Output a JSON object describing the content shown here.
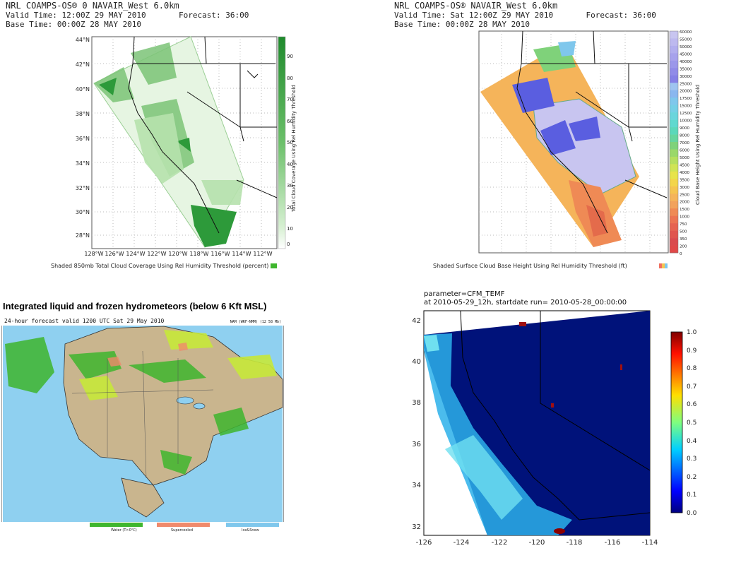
{
  "panel_tl": {
    "header": [
      "NRL COAMPS-OS® 0 NAVAIR_West 6.0km",
      "Valid Time: 12:00Z 29 MAY 2010       Forecast: 36:00",
      "Base Time: 00:00Z 28 MAY 2010"
    ],
    "lat_labels": [
      "44°N",
      "42°N",
      "40°N",
      "38°N",
      "36°N",
      "34°N",
      "32°N",
      "30°N",
      "28°N"
    ],
    "lon_labels": [
      "128°W",
      "126°W",
      "124°W",
      "122°W",
      "120°W",
      "118°W",
      "116°W",
      "114°W",
      "112°W"
    ],
    "colorbar_ticks": [
      "90",
      "80",
      "70",
      "60",
      "50",
      "40",
      "30",
      "20",
      "10",
      "0"
    ],
    "colorbar_label": "Total Cloud Coverage Using Rel Humidity Threshold",
    "caption": "Shaded 850mb Total Cloud Coverage Using Rel Humidity Threshold (percent)"
  },
  "panel_tr": {
    "header": [
      "NRL COAMPS-OS® NAVAIR_West 6.0km",
      "Valid Time: Sat 12:00Z 29 MAY 2010       Forecast: 36:00",
      "Base Time: 00:00Z 28 MAY 2010"
    ],
    "colorbar_ticks": [
      "60000",
      "55000",
      "50000",
      "45000",
      "40000",
      "35000",
      "30000",
      "25000",
      "20000",
      "17500",
      "15000",
      "12500",
      "10000",
      "9000",
      "8000",
      "7000",
      "6000",
      "5000",
      "4500",
      "4000",
      "3500",
      "3000",
      "2500",
      "2000",
      "1500",
      "1000",
      "750",
      "500",
      "350",
      "200",
      "0"
    ],
    "colorbar_label": "Cloud Base Height Using Rel Humidity Threshold",
    "caption": "Shaded Surface Cloud Base Height Using Rel Humidity Threshold (ft)"
  },
  "panel_bl": {
    "title": "Integrated liquid and frozen hydrometeors (below 6 Kft MSL)",
    "subheader": "24-hour forecast valid 1200 UTC Sat 29 May 2010",
    "subheader_right": "NAM (WRF-NMM) (12 58 Mb)",
    "legend": [
      {
        "label": "Water (T>0°C)",
        "color": "#3fb62e"
      },
      {
        "label": "Supercooled",
        "color": "#f08a6c"
      },
      {
        "label": "Ice&Snow",
        "color": "#7fc7ec"
      }
    ]
  },
  "panel_br": {
    "param_line": "parameter=CFM_TEMF",
    "time_line": "at 2010-05-29_12h, startdate run= 2010-05-28_00:00:00",
    "y_ticks": [
      "42",
      "40",
      "38",
      "36",
      "34",
      "32"
    ],
    "x_ticks": [
      "-126",
      "-124",
      "-122",
      "-120",
      "-118",
      "-116",
      "-114"
    ],
    "colorbar_ticks": [
      "1.0",
      "0.9",
      "0.8",
      "0.7",
      "0.6",
      "0.5",
      "0.4",
      "0.3",
      "0.2",
      "0.1",
      "0.0"
    ]
  },
  "colors": {
    "green_dark": "#1f8a2c",
    "green_mid": "#4fb04f",
    "green_light": "#b8e6b0",
    "land_tan": "#c9b58e",
    "ocean_blue": "#7ec8ec",
    "navy": "#00127a"
  }
}
